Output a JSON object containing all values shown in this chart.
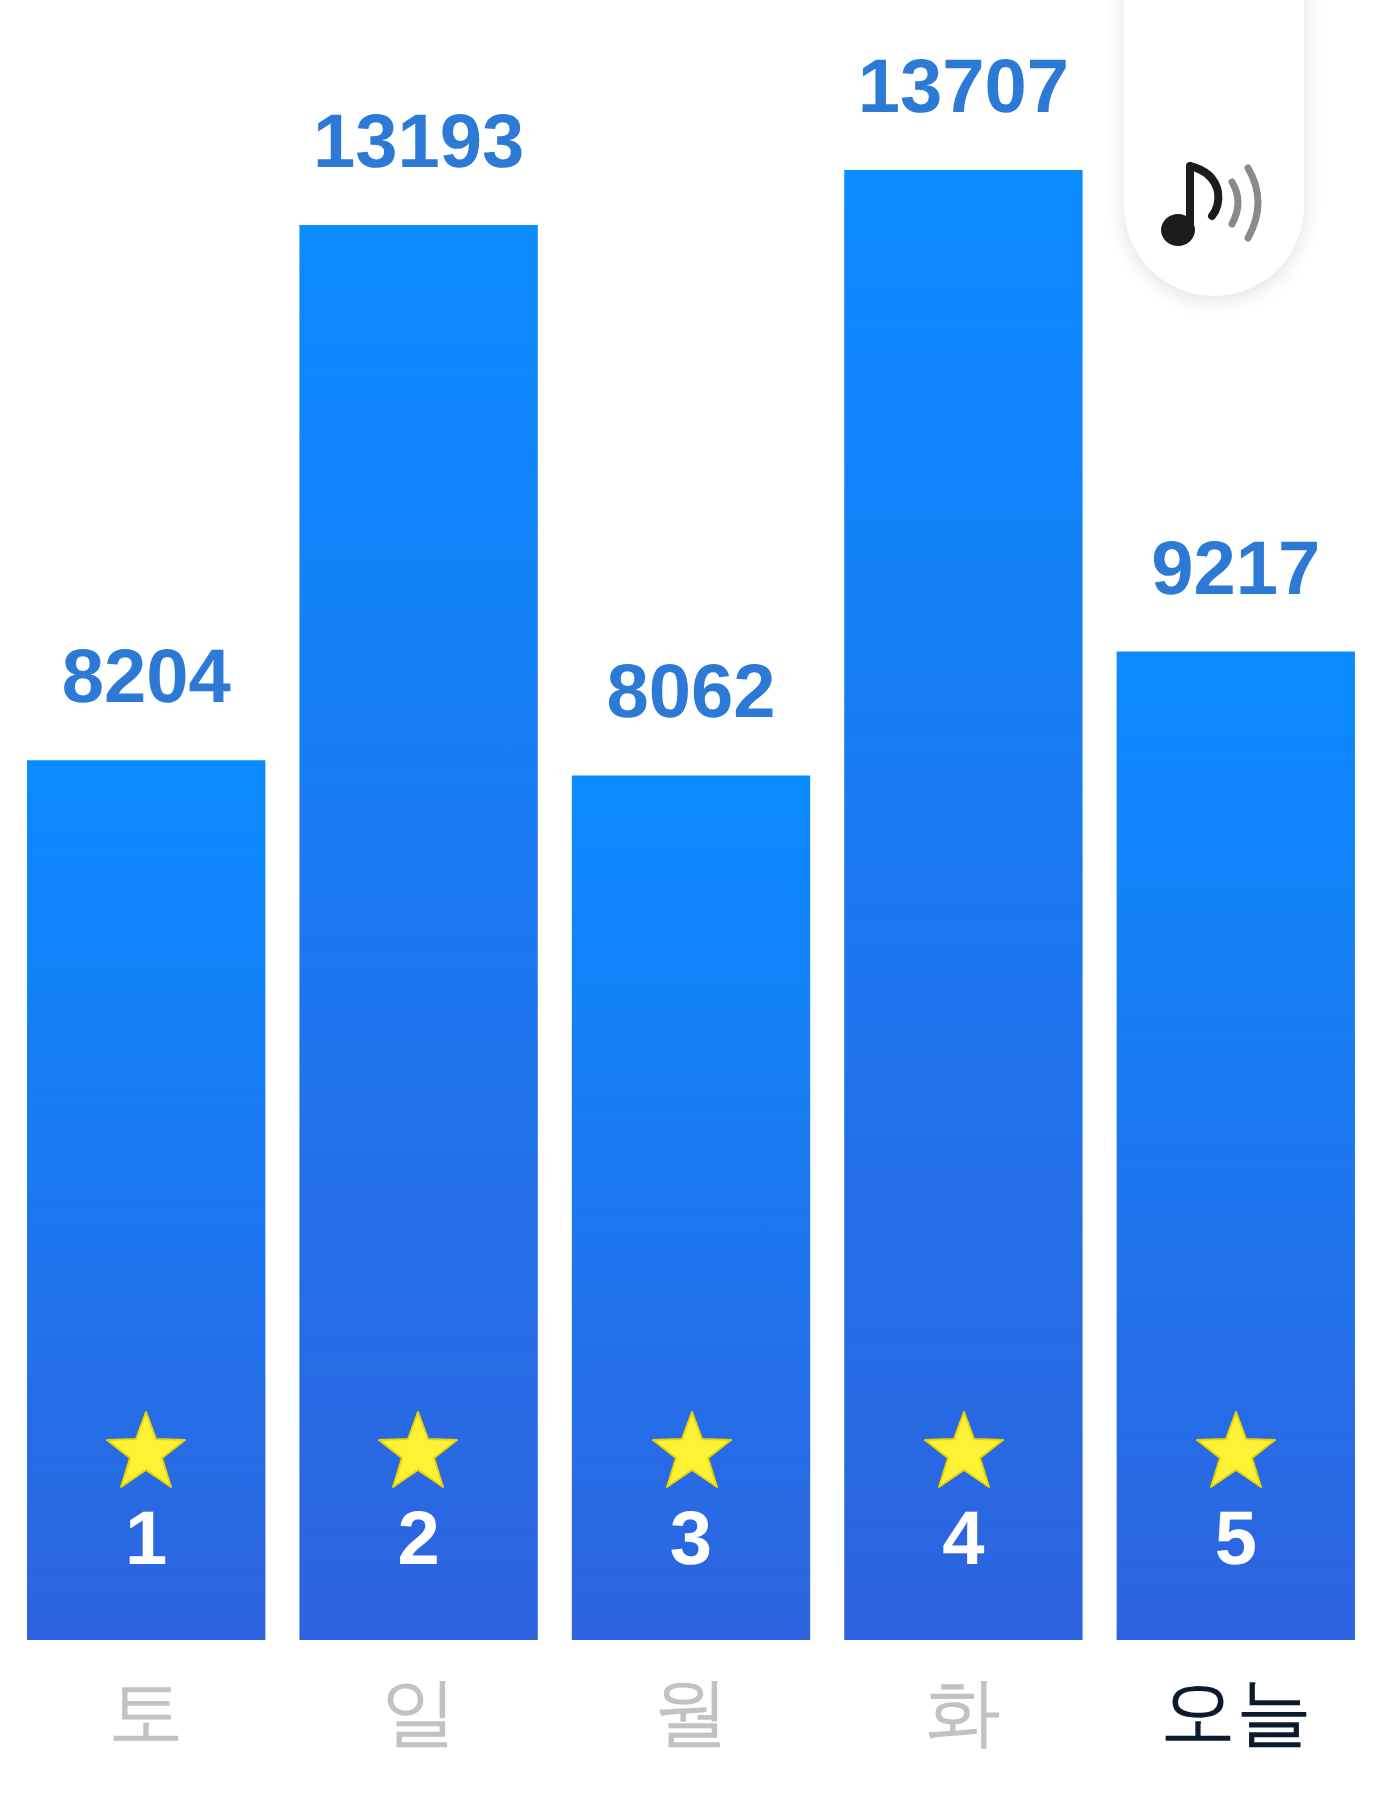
{
  "chart_data": {
    "type": "bar",
    "categories": [
      "토",
      "일",
      "월",
      "화",
      "오늘"
    ],
    "values": [
      8204,
      13193,
      8062,
      13707,
      9217
    ],
    "color": "#0a8cff",
    "data_labels": true,
    "annotations": [
      "1",
      "2",
      "3",
      "4",
      "5"
    ]
  }
}
